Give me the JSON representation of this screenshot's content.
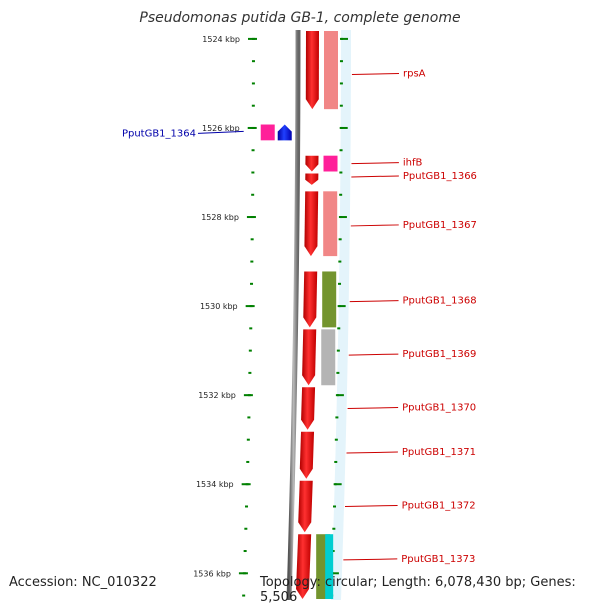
{
  "title": "Pseudomonas putida GB-1, complete genome",
  "accession": "Accession: NC_010322",
  "topology": "Topology: circular; Length: 6,078,430 bp; Genes: 5,506",
  "colors": {
    "forward_gene": "#ff0000",
    "reverse_gene": "#0000ff",
    "backbone": "#888888",
    "tick": "#008000",
    "label_forward": "#cc0000",
    "label_reverse": "#0000aa",
    "cog_pink": "#f08080",
    "cog_magenta": "#ff1493",
    "cog_olive": "#6b8e23",
    "cog_gray": "#b0b0b0",
    "cog_cyan": "#00ced1"
  },
  "axis": {
    "start_kbp": 1523.8,
    "end_kbp": 1536.6,
    "ticks": [
      {
        "label": "1524 kbp",
        "kbp": 1524
      },
      {
        "label": "1526 kbp",
        "kbp": 1526
      },
      {
        "label": "1528 kbp",
        "kbp": 1528
      },
      {
        "label": "1530 kbp",
        "kbp": 1530
      },
      {
        "label": "1532 kbp",
        "kbp": 1532
      },
      {
        "label": "1534 kbp",
        "kbp": 1534
      },
      {
        "label": "1536 kbp",
        "kbp": 1536
      }
    ]
  },
  "genes": [
    {
      "name": "rpsA",
      "strand": "+",
      "start_kbp": 1523.8,
      "end_kbp": 1525.6,
      "cog": "cog_pink",
      "label_kbp": 1524.8
    },
    {
      "name": "PputGB1_1364",
      "strand": "-",
      "start_kbp": 1525.9,
      "end_kbp": 1526.3,
      "cog": "cog_magenta",
      "label_kbp": 1526.1
    },
    {
      "name": "ihfB",
      "strand": "+",
      "start_kbp": 1526.6,
      "end_kbp": 1527.0,
      "cog": "cog_magenta",
      "label_kbp": 1526.8
    },
    {
      "name": "PputGB1_1366",
      "strand": "+",
      "start_kbp": 1527.0,
      "end_kbp": 1527.3,
      "cog": "",
      "label_kbp": 1527.1
    },
    {
      "name": "PputGB1_1367",
      "strand": "+",
      "start_kbp": 1527.4,
      "end_kbp": 1528.9,
      "cog": "cog_pink",
      "label_kbp": 1528.2
    },
    {
      "name": "PputGB1_1368",
      "strand": "+",
      "start_kbp": 1529.2,
      "end_kbp": 1530.5,
      "cog": "cog_olive",
      "label_kbp": 1529.9
    },
    {
      "name": "PputGB1_1369",
      "strand": "+",
      "start_kbp": 1530.5,
      "end_kbp": 1531.8,
      "cog": "cog_gray",
      "label_kbp": 1531.1
    },
    {
      "name": "PputGB1_1370",
      "strand": "+",
      "start_kbp": 1531.8,
      "end_kbp": 1532.8,
      "cog": "",
      "label_kbp": 1532.3
    },
    {
      "name": "PputGB1_1371",
      "strand": "+",
      "start_kbp": 1532.8,
      "end_kbp": 1533.9,
      "cog": "",
      "label_kbp": 1533.3
    },
    {
      "name": "PputGB1_1372",
      "strand": "+",
      "start_kbp": 1533.9,
      "end_kbp": 1535.1,
      "cog": "",
      "label_kbp": 1534.5
    },
    {
      "name": "PputGB1_1373",
      "strand": "+",
      "start_kbp": 1535.1,
      "end_kbp": 1536.6,
      "cog": "cog_olive",
      "label_kbp": 1535.7
    }
  ]
}
